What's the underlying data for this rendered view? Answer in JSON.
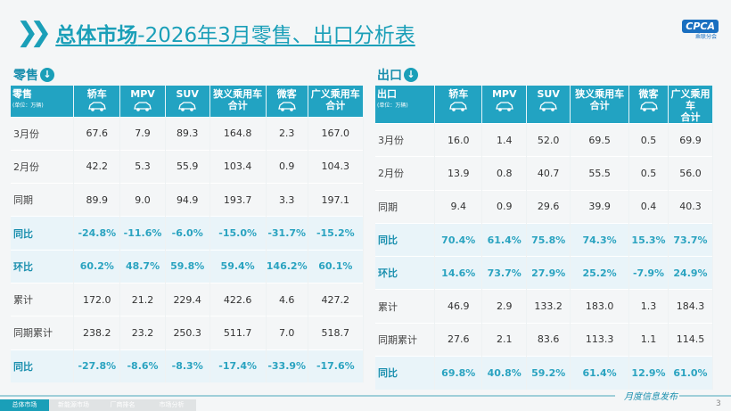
{
  "header": {
    "title_bold": "总体市场",
    "title_rest": "-2026年3月零售、出口分析表",
    "logo": "CPCA",
    "logo_sub": "乘联分会"
  },
  "retail": {
    "section": "零售",
    "corner": "零售",
    "unit": "(单位：万辆)",
    "columns": [
      "轿车",
      "MPV",
      "SUV",
      "狭义乘用车\n合计",
      "微客",
      "广义乘用车\n合计"
    ],
    "rows": [
      {
        "label": "3月份",
        "values": [
          "67.6",
          "7.9",
          "89.3",
          "164.8",
          "2.3",
          "167.0"
        ]
      },
      {
        "label": "2月份",
        "values": [
          "42.2",
          "5.3",
          "55.9",
          "103.4",
          "0.9",
          "104.3"
        ]
      },
      {
        "label": "同期",
        "values": [
          "89.9",
          "9.0",
          "94.9",
          "193.7",
          "3.3",
          "197.1"
        ]
      },
      {
        "label": "同比",
        "pct": true,
        "values": [
          "-24.8%",
          "-11.6%",
          "-6.0%",
          "-15.0%",
          "-31.7%",
          "-15.2%"
        ]
      },
      {
        "label": "环比",
        "pct": true,
        "values": [
          "60.2%",
          "48.7%",
          "59.8%",
          "59.4%",
          "146.2%",
          "60.1%"
        ]
      },
      {
        "label": "累计",
        "values": [
          "172.0",
          "21.2",
          "229.4",
          "422.6",
          "4.6",
          "427.2"
        ]
      },
      {
        "label": "同期累计",
        "values": [
          "238.2",
          "23.2",
          "250.3",
          "511.7",
          "7.0",
          "518.7"
        ]
      },
      {
        "label": "同比",
        "pct": true,
        "values": [
          "-27.8%",
          "-8.6%",
          "-8.3%",
          "-17.4%",
          "-33.9%",
          "-17.6%"
        ]
      }
    ]
  },
  "export": {
    "section": "出口",
    "corner": "出口",
    "unit": "(单位：万辆)",
    "columns": [
      "轿车",
      "MPV",
      "SUV",
      "狭义乘用车\n合计",
      "微客",
      "广义乘用车\n合计"
    ],
    "rows": [
      {
        "label": "3月份",
        "values": [
          "16.0",
          "1.4",
          "52.0",
          "69.5",
          "0.5",
          "69.9"
        ]
      },
      {
        "label": "2月份",
        "values": [
          "13.9",
          "0.8",
          "40.7",
          "55.5",
          "0.5",
          "56.0"
        ]
      },
      {
        "label": "同期",
        "values": [
          "9.4",
          "0.9",
          "29.6",
          "39.9",
          "0.4",
          "40.3"
        ]
      },
      {
        "label": "同比",
        "pct": true,
        "values": [
          "70.4%",
          "61.4%",
          "75.8%",
          "74.3%",
          "15.3%",
          "73.7%"
        ]
      },
      {
        "label": "环比",
        "pct": true,
        "values": [
          "14.6%",
          "73.7%",
          "27.9%",
          "25.2%",
          "-7.9%",
          "24.9%"
        ]
      },
      {
        "label": "累计",
        "values": [
          "46.9",
          "2.9",
          "133.2",
          "183.0",
          "1.3",
          "184.3"
        ]
      },
      {
        "label": "同期累计",
        "values": [
          "27.6",
          "2.1",
          "83.6",
          "113.3",
          "1.1",
          "114.5"
        ]
      },
      {
        "label": "同比",
        "pct": true,
        "values": [
          "69.8%",
          "40.8%",
          "59.2%",
          "61.4%",
          "12.9%",
          "61.0%"
        ]
      }
    ]
  },
  "footer": {
    "tabs": [
      "总体市场",
      "新能源市场",
      "厂商排名",
      "市场分析"
    ],
    "slogan": "月度信息发布",
    "page": "3"
  }
}
